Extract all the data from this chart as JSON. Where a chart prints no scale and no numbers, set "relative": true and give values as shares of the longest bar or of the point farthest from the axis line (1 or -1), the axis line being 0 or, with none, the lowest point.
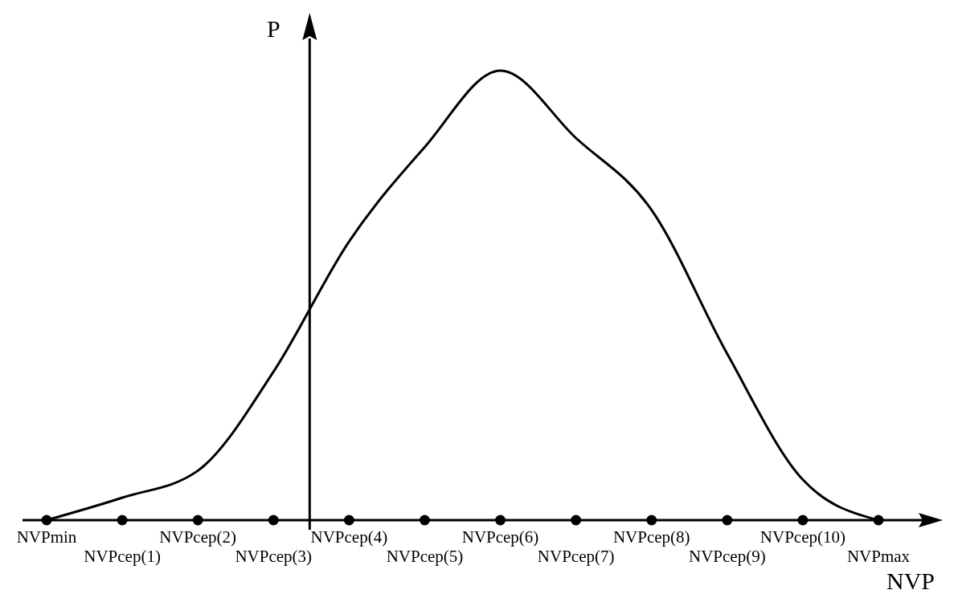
{
  "chart_data": {
    "type": "line",
    "xlabel": "NVP",
    "ylabel": "P",
    "relative": true,
    "categories": [
      "NVPmin",
      "NVPcep(1)",
      "NVPcep(2)",
      "NVPcep(3)",
      "NVPcep(4)",
      "NVPcep(5)",
      "NVPcep(6)",
      "NVPcep(7)",
      "NVPcep(8)",
      "NVPcep(9)",
      "NVPcep(10)",
      "NVPmax"
    ],
    "series": [
      {
        "color": "#000000",
        "marker": "none",
        "values": [
          0,
          0.05,
          0.11,
          0.33,
          0.62,
          0.83,
          1,
          0.85,
          0.69,
          0.37,
          0.09,
          0
        ]
      },
      {
        "type": "scatter",
        "color": "#000000",
        "marker": "circle",
        "values": [
          0,
          0,
          0,
          0,
          0,
          0,
          0,
          0,
          0,
          0,
          0,
          0
        ]
      }
    ]
  }
}
